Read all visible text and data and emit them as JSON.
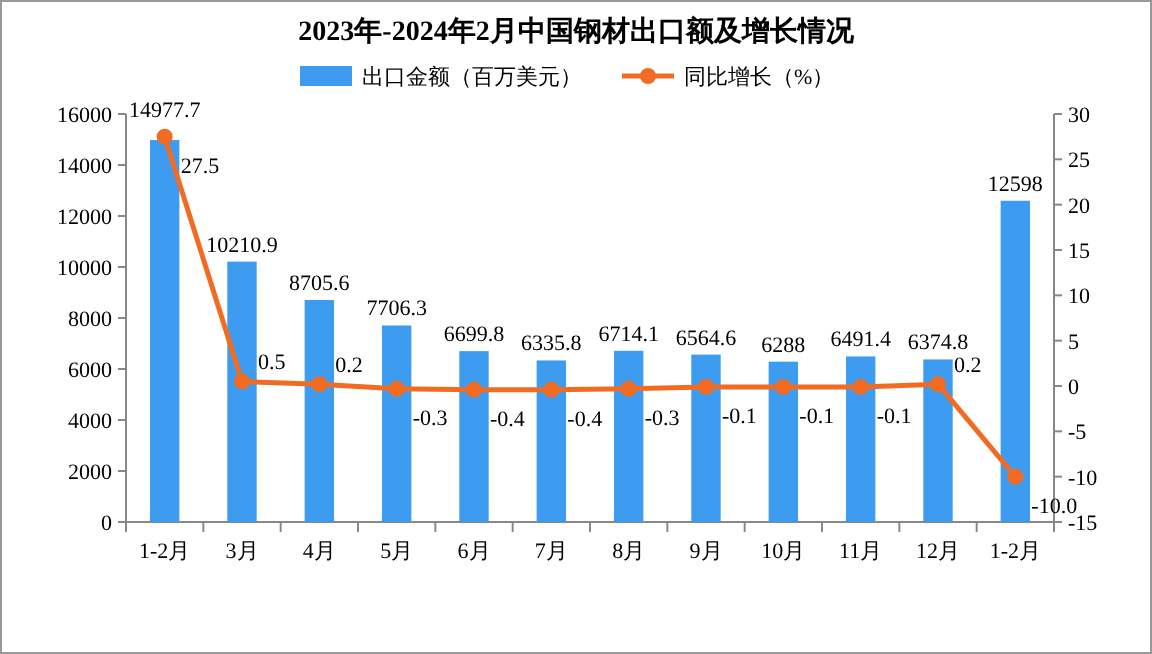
{
  "chart_data": {
    "type": "bar",
    "title": "2023年-2024年2月中国钢材出口额及增长情况",
    "categories": [
      "1-2月",
      "3月",
      "4月",
      "5月",
      "6月",
      "7月",
      "8月",
      "9月",
      "10月",
      "11月",
      "12月",
      "1-2月"
    ],
    "series": [
      {
        "name": "出口金额（百万美元）",
        "color": "#3d9cf0",
        "values": [
          14977.7,
          10210.9,
          8705.6,
          7706.3,
          6699.8,
          6335.8,
          6714.1,
          6564.6,
          6288,
          6491.4,
          6374.8,
          12598
        ],
        "value_labels": [
          "14977.7",
          "10210.9",
          "8705.6",
          "7706.3",
          "6699.8",
          "6335.8",
          "6714.1",
          "6564.6",
          "6288",
          "6491.4",
          "6374.8",
          "12598"
        ]
      },
      {
        "name": "同比增长（%）",
        "type": "line",
        "axis": "y2",
        "color": "#f26b22",
        "values": [
          27.5,
          0.5,
          0.2,
          -0.3,
          -0.4,
          -0.4,
          -0.3,
          -0.1,
          -0.1,
          -0.1,
          0.2,
          -10.0
        ],
        "value_labels": [
          "27.5",
          "0.5",
          "0.2",
          "-0.3",
          "-0.4",
          "-0.4",
          "-0.3",
          "-0.1",
          "-0.1",
          "-0.1",
          "0.2",
          "-10.0"
        ]
      }
    ],
    "ylim": [
      0,
      16000
    ],
    "yticks": [
      0,
      2000,
      4000,
      6000,
      8000,
      10000,
      12000,
      14000,
      16000
    ],
    "y2lim": [
      -15,
      30
    ],
    "y2ticks": [
      -15,
      -10,
      -5,
      0,
      5,
      10,
      15,
      20,
      25,
      30
    ],
    "marker": "circle",
    "legend": "top",
    "grid": false
  }
}
